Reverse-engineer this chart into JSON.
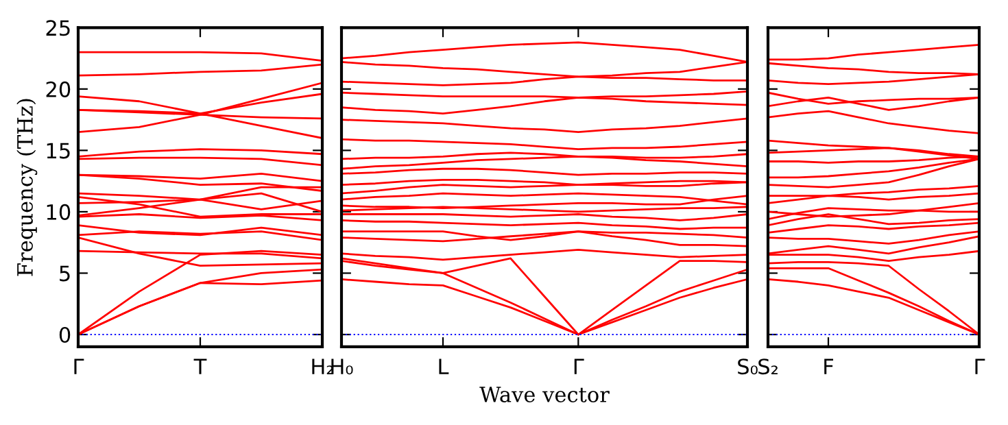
{
  "chart_data": [
    {
      "type": "line",
      "ylabel": "Frequency (THz)",
      "color": "#ff0000",
      "categories": [
        "Γ",
        null,
        "T",
        null,
        "H₂"
      ],
      "ylim": [
        -1,
        25
      ],
      "yticks": [
        0,
        5,
        10,
        15,
        20,
        25
      ],
      "ref_lines": [
        {
          "axis": "y",
          "value": 0,
          "color": "#0000ff",
          "line_style": "dotted"
        }
      ],
      "series": [
        {
          "values": [
            0,
            2.3,
            4.2,
            4.1,
            4.4
          ]
        },
        {
          "values": [
            0,
            2.3,
            4.2,
            5.0,
            5.3
          ]
        },
        {
          "values": [
            0,
            3.5,
            6.5,
            6.8,
            6.5
          ]
        },
        {
          "values": [
            7.9,
            6.6,
            5.6,
            5.7,
            5.8
          ]
        },
        {
          "values": [
            6.8,
            6.7,
            6.6,
            6.6,
            6.2
          ]
        },
        {
          "values": [
            8.1,
            8.4,
            8.2,
            8.4,
            7.7
          ]
        },
        {
          "values": [
            8.9,
            8.3,
            8.1,
            8.7,
            8.1
          ]
        },
        {
          "values": [
            9.6,
            9.8,
            9.5,
            9.7,
            9.3
          ]
        },
        {
          "values": [
            9.7,
            10.3,
            11.0,
            11.5,
            10.0
          ]
        },
        {
          "values": [
            10.7,
            10.8,
            11.0,
            12.0,
            12.0
          ]
        },
        {
          "values": [
            11.2,
            10.6,
            9.6,
            9.8,
            9.8
          ]
        },
        {
          "values": [
            11.5,
            11.3,
            11.0,
            10.2,
            10.9
          ]
        },
        {
          "values": [
            13.0,
            12.9,
            12.7,
            13.1,
            12.5
          ]
        },
        {
          "values": [
            13.0,
            12.7,
            12.2,
            12.3,
            11.7
          ]
        },
        {
          "values": [
            14.3,
            14.4,
            14.4,
            14.3,
            13.8
          ]
        },
        {
          "values": [
            14.5,
            14.9,
            15.1,
            15.0,
            14.7
          ]
        },
        {
          "values": [
            16.5,
            16.9,
            17.9,
            19.2,
            20.5
          ]
        },
        {
          "values": [
            18.3,
            18.2,
            18.0,
            18.9,
            19.6
          ]
        },
        {
          "values": [
            18.3,
            18.1,
            17.9,
            17.7,
            17.6
          ]
        },
        {
          "values": [
            19.4,
            19.0,
            18.0,
            17.0,
            16.0
          ]
        },
        {
          "values": [
            21.1,
            21.2,
            21.4,
            21.5,
            22.0
          ]
        },
        {
          "values": [
            23.0,
            23.0,
            23.0,
            22.9,
            22.3
          ]
        }
      ]
    },
    {
      "type": "line",
      "xlabel": "Wave vector",
      "color": "#ff0000",
      "categories": [
        "H₀",
        null,
        null,
        "L",
        null,
        null,
        null,
        "Γ",
        null,
        null,
        null,
        null,
        "S₀"
      ],
      "ylim": [
        -1,
        25
      ],
      "yticks": [
        0,
        5,
        10,
        15,
        20,
        25
      ],
      "tick_labels": "x",
      "ref_lines": [
        {
          "axis": "y",
          "value": 0,
          "color": "#0000ff",
          "line_style": "dotted"
        }
      ],
      "series": [
        {
          "values": [
            4.5,
            4.3,
            4.1,
            4.0,
            3.1,
            2.2,
            1.1,
            0,
            1.0,
            2.0,
            3.0,
            3.8,
            4.5
          ]
        },
        {
          "values": [
            6.0,
            5.6,
            5.3,
            5.0,
            3.8,
            2.6,
            1.3,
            0,
            1.2,
            2.3,
            3.5,
            4.4,
            5.3
          ]
        },
        {
          "values": [
            6.2,
            5.8,
            5.4,
            5.0,
            5.6,
            6.2,
            3.1,
            0,
            2.0,
            4.0,
            6.0,
            6.0,
            5.9
          ]
        },
        {
          "values": [
            6.6,
            6.4,
            6.3,
            6.1,
            6.3,
            6.5,
            6.7,
            6.9,
            6.7,
            6.5,
            6.3,
            6.4,
            6.5
          ]
        },
        {
          "values": [
            7.9,
            7.8,
            7.7,
            7.6,
            7.8,
            8.0,
            8.2,
            8.4,
            8.0,
            7.7,
            7.3,
            7.3,
            7.2
          ]
        },
        {
          "values": [
            8.4,
            8.4,
            8.4,
            8.4,
            8.0,
            7.7,
            8.0,
            8.4,
            8.3,
            8.3,
            8.2,
            8.1,
            7.9
          ]
        },
        {
          "values": [
            9.3,
            9.2,
            9.2,
            9.1,
            9.0,
            8.9,
            9.0,
            9.1,
            8.9,
            8.8,
            8.6,
            8.7,
            8.7
          ]
        },
        {
          "values": [
            9.8,
            9.8,
            9.8,
            9.8,
            9.7,
            9.6,
            9.7,
            9.8,
            9.6,
            9.5,
            9.3,
            9.5,
            9.8
          ]
        },
        {
          "values": [
            10.1,
            10.2,
            10.3,
            10.4,
            10.3,
            10.2,
            10.1,
            10.0,
            10.1,
            10.2,
            10.3,
            10.3,
            10.4
          ]
        },
        {
          "values": [
            10.5,
            10.4,
            10.4,
            10.3,
            10.4,
            10.5,
            10.6,
            10.7,
            10.7,
            10.6,
            10.6,
            11.0,
            11.3
          ]
        },
        {
          "values": [
            11.0,
            11.2,
            11.3,
            11.5,
            11.4,
            11.3,
            11.4,
            11.5,
            11.4,
            11.3,
            11.2,
            10.9,
            10.6
          ]
        },
        {
          "values": [
            11.5,
            11.7,
            12.0,
            12.2,
            12.1,
            12.0,
            12.1,
            12.2,
            12.2,
            12.1,
            12.1,
            12.3,
            12.4
          ]
        },
        {
          "values": [
            12.2,
            12.3,
            12.5,
            12.6,
            12.6,
            12.5,
            12.4,
            12.2,
            12.3,
            12.4,
            12.5,
            12.5,
            12.4
          ]
        },
        {
          "values": [
            13.1,
            13.2,
            13.4,
            13.5,
            13.5,
            13.4,
            13.2,
            13.0,
            13.1,
            13.1,
            13.2,
            13.2,
            13.1
          ]
        },
        {
          "values": [
            13.5,
            13.7,
            13.8,
            14.0,
            14.2,
            14.3,
            14.4,
            14.5,
            14.4,
            14.2,
            14.1,
            13.9,
            13.7
          ]
        },
        {
          "values": [
            14.3,
            14.4,
            14.4,
            14.5,
            14.7,
            14.8,
            14.7,
            14.5,
            14.5,
            14.4,
            14.4,
            14.5,
            14.7
          ]
        },
        {
          "values": [
            15.9,
            15.8,
            15.8,
            15.7,
            15.6,
            15.5,
            15.3,
            15.1,
            15.2,
            15.2,
            15.3,
            15.5,
            15.7
          ]
        },
        {
          "values": [
            17.5,
            17.4,
            17.3,
            17.2,
            17.0,
            16.8,
            16.7,
            16.5,
            16.7,
            16.8,
            17.0,
            17.3,
            17.6
          ]
        },
        {
          "values": [
            18.5,
            18.3,
            18.2,
            18.0,
            18.3,
            18.6,
            19.0,
            19.3,
            19.2,
            19.0,
            18.9,
            18.8,
            18.7
          ]
        },
        {
          "values": [
            19.7,
            19.6,
            19.5,
            19.4,
            19.4,
            19.4,
            19.4,
            19.3,
            19.4,
            19.4,
            19.5,
            19.6,
            19.8
          ]
        },
        {
          "values": [
            20.6,
            20.5,
            20.4,
            20.3,
            20.4,
            20.5,
            20.8,
            21.0,
            21.1,
            21.3,
            21.4,
            21.8,
            22.2
          ]
        },
        {
          "values": [
            22.2,
            22.0,
            21.9,
            21.7,
            21.6,
            21.4,
            21.2,
            21.0,
            20.9,
            20.9,
            20.8,
            20.7,
            20.7
          ]
        },
        {
          "values": [
            22.5,
            22.7,
            23.0,
            23.2,
            23.4,
            23.6,
            23.7,
            23.8,
            23.6,
            23.4,
            23.2,
            22.7,
            22.2
          ]
        }
      ]
    },
    {
      "type": "line",
      "color": "#ff0000",
      "categories": [
        "S₂",
        null,
        "F",
        null,
        null,
        null,
        null,
        "Γ"
      ],
      "ylim": [
        -1,
        25
      ],
      "yticks": [
        0,
        5,
        10,
        15,
        20,
        25
      ],
      "tick_labels": "x",
      "ref_lines": [
        {
          "axis": "y",
          "value": 0,
          "color": "#0000ff",
          "line_style": "dotted"
        }
      ],
      "series": [
        {
          "values": [
            4.5,
            4.3,
            4.0,
            3.5,
            3.0,
            2.0,
            1.0,
            0
          ]
        },
        {
          "values": [
            5.4,
            5.4,
            5.4,
            4.4,
            3.4,
            2.3,
            1.1,
            0
          ]
        },
        {
          "values": [
            5.8,
            5.9,
            5.9,
            5.8,
            5.6,
            3.7,
            1.9,
            0
          ]
        },
        {
          "values": [
            6.5,
            6.5,
            6.5,
            6.3,
            6.0,
            6.3,
            6.5,
            6.8
          ]
        },
        {
          "values": [
            6.6,
            6.9,
            7.2,
            6.9,
            6.6,
            7.1,
            7.5,
            8.0
          ]
        },
        {
          "values": [
            7.9,
            7.8,
            7.8,
            7.6,
            7.4,
            7.7,
            8.1,
            8.4
          ]
        },
        {
          "values": [
            8.3,
            8.6,
            8.9,
            8.8,
            8.6,
            8.8,
            8.9,
            9.1
          ]
        },
        {
          "values": [
            8.9,
            9.4,
            9.8,
            9.4,
            9.0,
            9.1,
            9.3,
            9.4
          ]
        },
        {
          "values": [
            9.4,
            9.9,
            10.3,
            10.2,
            10.1,
            10.1,
            10.0,
            10.0
          ]
        },
        {
          "values": [
            10.0,
            9.8,
            9.6,
            9.7,
            9.8,
            10.1,
            10.4,
            10.7
          ]
        },
        {
          "values": [
            10.7,
            11.0,
            11.3,
            11.2,
            11.0,
            11.2,
            11.3,
            11.5
          ]
        },
        {
          "values": [
            11.3,
            11.3,
            11.3,
            11.5,
            11.6,
            11.8,
            11.9,
            12.1
          ]
        },
        {
          "values": [
            12.2,
            12.1,
            12.0,
            12.2,
            12.4,
            13.0,
            13.7,
            14.3
          ]
        },
        {
          "values": [
            12.8,
            12.8,
            12.9,
            13.1,
            13.3,
            13.6,
            14.0,
            14.3
          ]
        },
        {
          "values": [
            14.1,
            14.1,
            14.0,
            14.1,
            14.1,
            14.2,
            14.4,
            14.5
          ]
        },
        {
          "values": [
            14.8,
            14.9,
            15.0,
            15.1,
            15.2,
            14.9,
            14.6,
            14.3
          ]
        },
        {
          "values": [
            15.8,
            15.6,
            15.4,
            15.3,
            15.2,
            15.0,
            14.7,
            14.5
          ]
        },
        {
          "values": [
            17.7,
            18.0,
            18.2,
            17.7,
            17.2,
            16.9,
            16.6,
            16.4
          ]
        },
        {
          "values": [
            18.6,
            19.0,
            19.3,
            18.8,
            18.3,
            18.6,
            19.0,
            19.3
          ]
        },
        {
          "values": [
            19.7,
            19.2,
            18.8,
            19.0,
            19.1,
            19.2,
            19.2,
            19.3
          ]
        },
        {
          "values": [
            20.7,
            20.5,
            20.4,
            20.5,
            20.6,
            20.8,
            21.0,
            21.2
          ]
        },
        {
          "values": [
            22.1,
            21.9,
            21.7,
            21.6,
            21.4,
            21.3,
            21.3,
            21.2
          ]
        },
        {
          "values": [
            22.4,
            22.4,
            22.5,
            22.8,
            23.0,
            23.2,
            23.4,
            23.6
          ]
        }
      ]
    }
  ]
}
